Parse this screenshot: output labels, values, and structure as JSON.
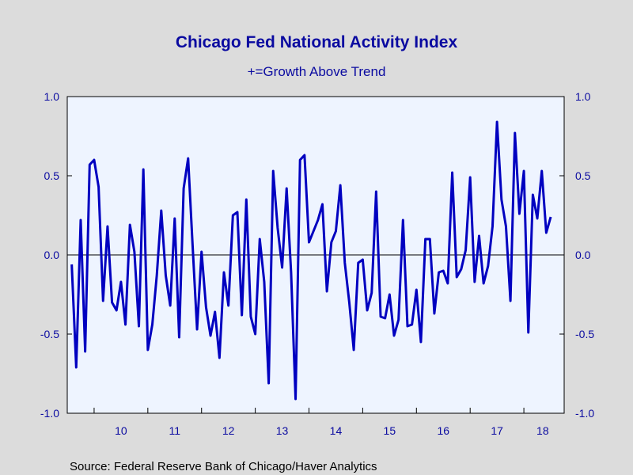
{
  "chart_data": {
    "type": "line",
    "title": "Chicago Fed National Activity Index",
    "subtitle": "+=Growth Above Trend",
    "source": "Source:  Federal Reserve Bank of Chicago/Haver Analytics",
    "xlabel": "",
    "ylabel": "",
    "x_tick_labels": [
      "10",
      "11",
      "12",
      "13",
      "14",
      "15",
      "16",
      "17",
      "18"
    ],
    "y_tick_labels": [
      "1.0",
      "0.5",
      "0.0",
      "-0.5",
      "-1.0"
    ],
    "y_ticks": [
      1.0,
      0.5,
      0.0,
      -0.5,
      -1.0
    ],
    "ylim": [
      -1.0,
      1.0
    ],
    "xlim": [
      "2009-07",
      "2018-10"
    ],
    "zero_line": true,
    "grid": false,
    "legend": "none",
    "colors": {
      "line": "#0000c0",
      "text": "#0a0aa0",
      "plot_background": "#eef4ff",
      "page_background": "#dcdcdc"
    },
    "series": [
      {
        "start": "2009-08",
        "frequency": "monthly",
        "values": [
          -0.06,
          -0.71,
          0.22,
          -0.61,
          0.57,
          0.6,
          0.43,
          -0.29,
          0.18,
          -0.3,
          -0.35,
          -0.17,
          -0.44,
          0.19,
          0.02,
          -0.45,
          0.54,
          -0.6,
          -0.44,
          -0.13,
          0.28,
          -0.13,
          -0.32,
          0.23,
          -0.52,
          0.42,
          0.61,
          0.06,
          -0.47,
          0.02,
          -0.33,
          -0.51,
          -0.36,
          -0.65,
          -0.11,
          -0.32,
          0.25,
          0.27,
          -0.38,
          0.35,
          -0.39,
          -0.5,
          0.1,
          -0.17,
          -0.81,
          0.53,
          0.17,
          -0.08,
          0.42,
          -0.11,
          -0.91,
          0.6,
          0.63,
          0.08,
          0.15,
          0.22,
          0.32,
          -0.23,
          0.08,
          0.15,
          0.44,
          -0.05,
          -0.3,
          -0.6,
          -0.05,
          -0.03,
          -0.35,
          -0.24,
          0.4,
          -0.39,
          -0.4,
          -0.25,
          -0.51,
          -0.41,
          0.22,
          -0.45,
          -0.44,
          -0.22,
          -0.55,
          0.1,
          0.1,
          -0.37,
          -0.11,
          -0.1,
          -0.18,
          0.52,
          -0.14,
          -0.09,
          0.03,
          0.49,
          -0.17,
          0.12,
          -0.18,
          -0.07,
          0.18,
          0.84,
          0.35,
          0.18,
          -0.29,
          0.77,
          0.26,
          0.53,
          -0.49,
          0.38,
          0.23,
          0.53,
          0.14,
          0.24
        ]
      }
    ]
  }
}
